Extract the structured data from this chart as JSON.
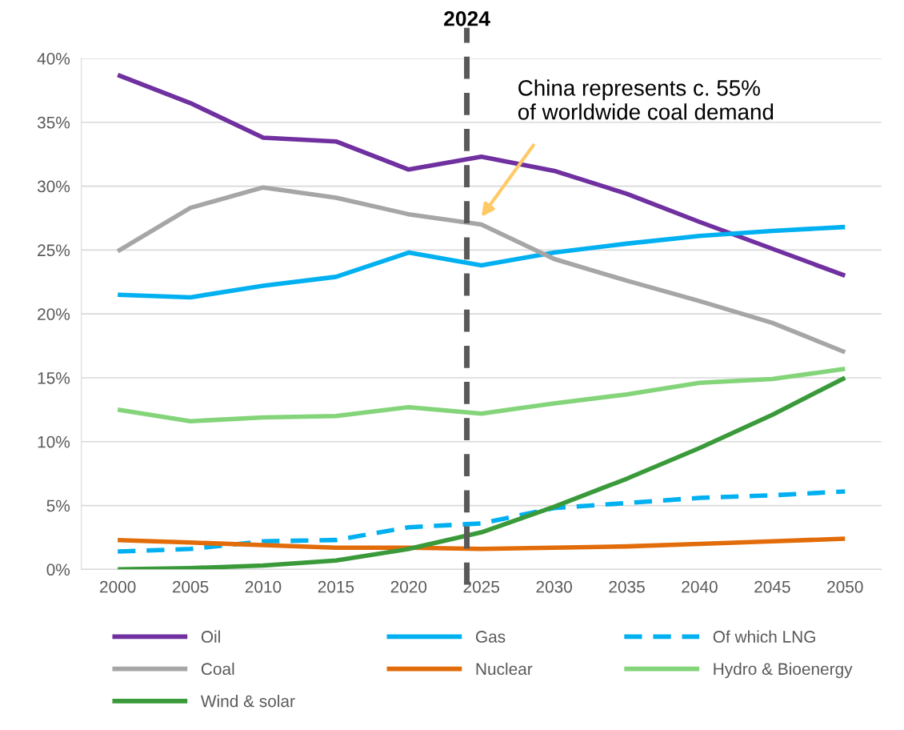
{
  "chart_data": {
    "type": "line",
    "x": [
      2000,
      2005,
      2010,
      2015,
      2020,
      2025,
      2030,
      2035,
      2040,
      2045,
      2050
    ],
    "series": [
      {
        "name": "Oil",
        "color": "#7030a0",
        "values": [
          38.7,
          36.5,
          33.8,
          33.5,
          31.3,
          32.3,
          31.2,
          29.4,
          27.2,
          25.1,
          23.0
        ]
      },
      {
        "name": "Gas",
        "color": "#00b0f0",
        "values": [
          21.5,
          21.3,
          22.2,
          22.9,
          24.8,
          23.8,
          24.8,
          25.5,
          26.1,
          26.5,
          26.8
        ]
      },
      {
        "name": "Of which LNG",
        "color": "#00b0f0",
        "line_style": "dashed",
        "values": [
          1.4,
          1.6,
          2.2,
          2.3,
          3.3,
          3.6,
          4.8,
          5.2,
          5.6,
          5.8,
          6.1
        ]
      },
      {
        "name": "Coal",
        "color": "#a6a6a6",
        "values": [
          24.9,
          28.3,
          29.9,
          29.1,
          27.8,
          27.0,
          24.3,
          22.6,
          21.0,
          19.3,
          17.0
        ]
      },
      {
        "name": "Nuclear",
        "color": "#e36c0a",
        "values": [
          2.3,
          2.1,
          1.9,
          1.7,
          1.7,
          1.6,
          1.7,
          1.8,
          2.0,
          2.2,
          2.4
        ]
      },
      {
        "name": "Hydro & Bioenergy",
        "color": "#84d47a",
        "values": [
          12.5,
          11.6,
          11.9,
          12.0,
          12.7,
          12.2,
          13.0,
          13.7,
          14.6,
          14.9,
          15.7
        ]
      },
      {
        "name": "Wind & solar",
        "color": "#3a9a3a",
        "values": [
          0.0,
          0.1,
          0.3,
          0.7,
          1.6,
          2.9,
          4.9,
          7.1,
          9.5,
          12.1,
          15.0
        ]
      }
    ],
    "xlim": [
      1997.5,
      2052.5
    ],
    "xticks": [
      2000,
      2005,
      2010,
      2015,
      2020,
      2025,
      2030,
      2035,
      2040,
      2045,
      2050
    ],
    "ylim": [
      0,
      40
    ],
    "yticks": [
      {
        "value": 0,
        "label": "0%"
      },
      {
        "value": 5,
        "label": "5%"
      },
      {
        "value": 10,
        "label": "10%"
      },
      {
        "value": 15,
        "label": "15%"
      },
      {
        "value": 20,
        "label": "20%"
      },
      {
        "value": 25,
        "label": "25%"
      },
      {
        "value": 30,
        "label": "30%"
      },
      {
        "value": 35,
        "label": "35%"
      },
      {
        "value": 40,
        "label": "40%"
      }
    ],
    "ref_lines": [
      {
        "axis": "x",
        "value": 2024,
        "label": "2024",
        "color": "#595959",
        "line_style": "dashed"
      }
    ],
    "annotations": [
      "China represents c. 55%\nof worldwide coal demand"
    ],
    "grid": "y",
    "legend": "bottom",
    "marker": "none",
    "line_style": "solid"
  }
}
